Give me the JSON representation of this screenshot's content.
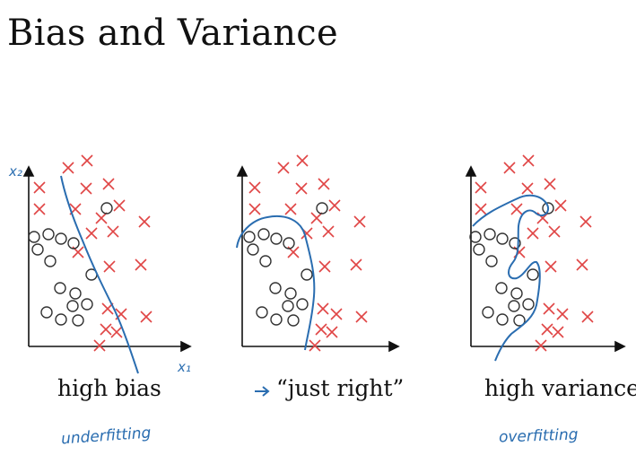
{
  "title": "Bias and Variance",
  "colors": {
    "cross": "#e04545",
    "circle": "#333333",
    "boundary": "#2a6db0",
    "axis": "#111111"
  },
  "panels": [
    {
      "caption": "high bias",
      "annotation": "underfitting"
    },
    {
      "caption": "“just right”",
      "annotation": ""
    },
    {
      "caption": "high variance",
      "annotation": "overfitting"
    }
  ],
  "axis_labels": {
    "x": "x₁",
    "y": "x₂"
  }
}
